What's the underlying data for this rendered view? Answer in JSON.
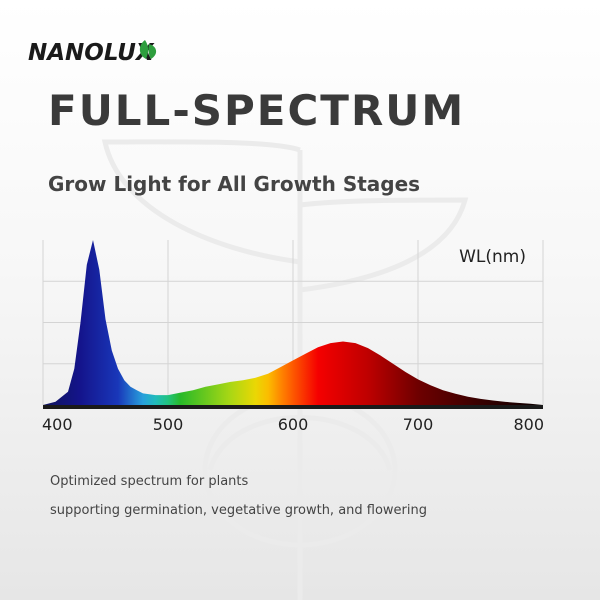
{
  "brand": {
    "name": "NANOLUX",
    "text_color": "#1a1a1a",
    "leaf_color": "#2e9e3e"
  },
  "header": {
    "title": "FULL-SPECTRUM",
    "subtitle": "Grow Light for All Growth Stages"
  },
  "description": {
    "line1": "Optimized spectrum for plants",
    "line2": "supporting germination, vegetative growth, and flowering"
  },
  "chart_data": {
    "type": "area",
    "title": "",
    "xlabel": "WL(nm)",
    "ylabel": "",
    "xlim": [
      400,
      800
    ],
    "ylim": [
      0,
      1.0
    ],
    "xticks": [
      400,
      500,
      600,
      700,
      800
    ],
    "grid": true,
    "legend": "none",
    "series": [
      {
        "x": [
          400,
          410,
          420,
          425,
          430,
          435,
          440,
          445,
          450,
          455,
          460,
          465,
          470,
          475,
          480,
          490,
          500,
          510,
          520,
          530,
          540,
          550,
          560,
          570,
          580,
          590,
          600,
          610,
          620,
          630,
          640,
          650,
          660,
          670,
          680,
          690,
          700,
          710,
          720,
          730,
          740,
          750,
          760,
          770,
          780,
          790,
          800
        ],
        "values": [
          0.0,
          0.02,
          0.08,
          0.22,
          0.5,
          0.85,
          1.0,
          0.82,
          0.52,
          0.33,
          0.22,
          0.15,
          0.11,
          0.09,
          0.07,
          0.06,
          0.06,
          0.075,
          0.09,
          0.11,
          0.125,
          0.14,
          0.15,
          0.165,
          0.19,
          0.23,
          0.27,
          0.31,
          0.35,
          0.375,
          0.385,
          0.375,
          0.345,
          0.3,
          0.25,
          0.2,
          0.155,
          0.12,
          0.09,
          0.068,
          0.05,
          0.037,
          0.027,
          0.019,
          0.013,
          0.008,
          0.0
        ]
      }
    ]
  }
}
